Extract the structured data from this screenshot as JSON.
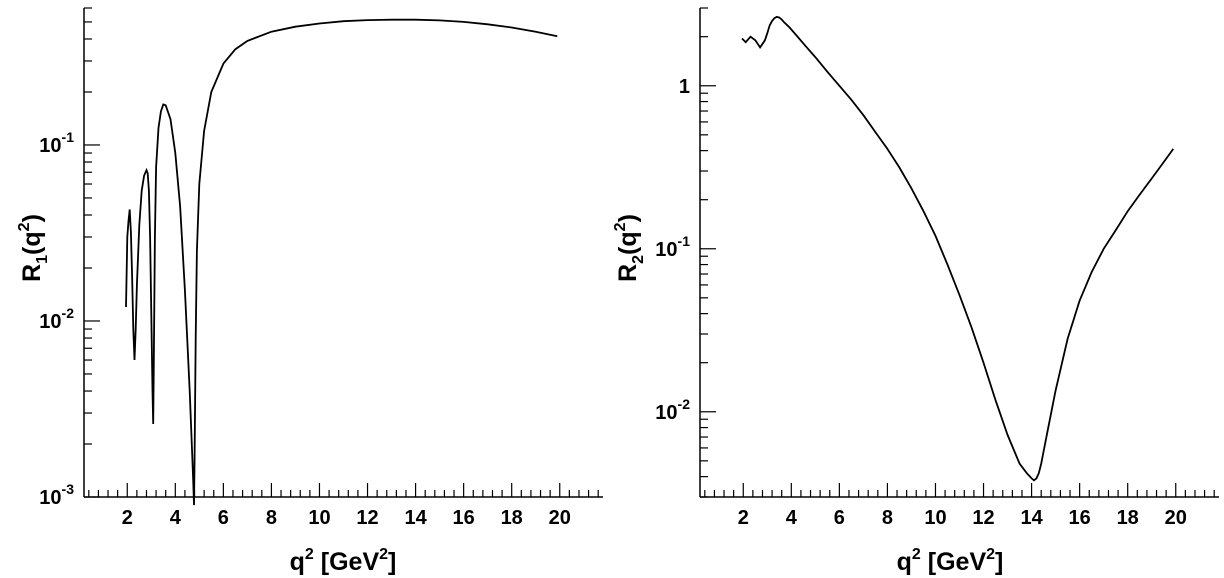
{
  "chart_data": [
    {
      "type": "line",
      "title": "",
      "ylabel_main": "R",
      "ylabel_sub": "1",
      "ylabel_tail": "(q",
      "ylabel_sup": "2",
      "ylabel_close": ")",
      "xlabel_main": "q",
      "xlabel_sup": "2",
      "xlabel_mid": " [GeV",
      "xlabel_sup2": "2",
      "xlabel_close": "]",
      "xlim": [
        0.2,
        21.8
      ],
      "ylim": [
        0.001,
        0.6
      ],
      "yscale": "log",
      "grid": false,
      "x_ticks": [
        "2",
        "4",
        "6",
        "8",
        "10",
        "12",
        "14",
        "16",
        "18",
        "20"
      ],
      "y_ticks": [
        {
          "base": "10",
          "exp": "-3",
          "value": 0.001
        },
        {
          "base": "10",
          "exp": "-2",
          "value": 0.01
        },
        {
          "base": "10",
          "exp": "-1",
          "value": 0.1
        }
      ],
      "series": [
        {
          "x": [
            1.95,
            2.0,
            2.05,
            2.1,
            2.15,
            2.2,
            2.25,
            2.3,
            2.35,
            2.4,
            2.5,
            2.6,
            2.7,
            2.8,
            2.85,
            2.9,
            2.95,
            3.0,
            3.05,
            3.08,
            3.1,
            3.15,
            3.2,
            3.3,
            3.4,
            3.5,
            3.6,
            3.8,
            4.0,
            4.2,
            4.4,
            4.6,
            4.7,
            4.75,
            4.78,
            4.8,
            4.85,
            4.9,
            5.0,
            5.2,
            5.5,
            6.0,
            6.5,
            7.0,
            8.0,
            9.0,
            10.0,
            11.0,
            12.0,
            13.0,
            14.0,
            15.0,
            16.0,
            17.0,
            18.0,
            19.0,
            19.9
          ],
          "y": [
            0.012,
            0.03,
            0.037,
            0.043,
            0.032,
            0.018,
            0.009,
            0.006,
            0.009,
            0.016,
            0.035,
            0.055,
            0.067,
            0.072,
            0.069,
            0.055,
            0.03,
            0.011,
            0.004,
            0.0026,
            0.005,
            0.03,
            0.075,
            0.125,
            0.155,
            0.17,
            0.168,
            0.14,
            0.09,
            0.045,
            0.015,
            0.004,
            0.0018,
            0.0012,
            0.0009,
            0.0015,
            0.008,
            0.025,
            0.06,
            0.12,
            0.2,
            0.29,
            0.35,
            0.39,
            0.44,
            0.47,
            0.49,
            0.505,
            0.512,
            0.515,
            0.515,
            0.51,
            0.5,
            0.485,
            0.465,
            0.44,
            0.415
          ]
        }
      ]
    },
    {
      "type": "line",
      "title": "",
      "ylabel_main": "R",
      "ylabel_sub": "2",
      "ylabel_tail": "(q",
      "ylabel_sup": "2",
      "ylabel_close": ")",
      "xlabel_main": "q",
      "xlabel_sup": "2",
      "xlabel_mid": " [GeV",
      "xlabel_sup2": "2",
      "xlabel_close": "]",
      "xlim": [
        0.2,
        21.8
      ],
      "ylim": [
        0.003,
        3.0
      ],
      "yscale": "log",
      "grid": false,
      "x_ticks": [
        "2",
        "4",
        "6",
        "8",
        "10",
        "12",
        "14",
        "16",
        "18",
        "20"
      ],
      "y_ticks": [
        {
          "base": "10",
          "exp": "-2",
          "value": 0.01
        },
        {
          "base": "10",
          "exp": "-1",
          "value": 0.1
        },
        {
          "base": "1",
          "exp": "",
          "value": 1
        }
      ],
      "series": [
        {
          "x": [
            1.95,
            2.1,
            2.3,
            2.5,
            2.7,
            2.9,
            3.0,
            3.1,
            3.2,
            3.3,
            3.4,
            3.5,
            3.6,
            3.7,
            3.9,
            4.2,
            4.6,
            5.0,
            5.5,
            6.0,
            6.5,
            7.0,
            7.5,
            8.0,
            8.5,
            9.0,
            9.5,
            10.0,
            10.5,
            11.0,
            11.5,
            12.0,
            12.5,
            13.0,
            13.5,
            13.8,
            14.0,
            14.1,
            14.2,
            14.3,
            14.4,
            14.6,
            15.0,
            15.5,
            16.0,
            16.5,
            17.0,
            17.5,
            18.0,
            18.5,
            19.0,
            19.5,
            19.9
          ],
          "y": [
            1.95,
            1.85,
            2.0,
            1.9,
            1.72,
            1.9,
            2.1,
            2.35,
            2.5,
            2.6,
            2.65,
            2.62,
            2.55,
            2.45,
            2.3,
            2.05,
            1.75,
            1.5,
            1.22,
            1.0,
            0.82,
            0.66,
            0.52,
            0.41,
            0.315,
            0.235,
            0.17,
            0.12,
            0.08,
            0.052,
            0.033,
            0.02,
            0.0118,
            0.0072,
            0.0048,
            0.0042,
            0.0039,
            0.0038,
            0.0039,
            0.0042,
            0.0048,
            0.0068,
            0.0135,
            0.028,
            0.048,
            0.072,
            0.1,
            0.13,
            0.17,
            0.215,
            0.27,
            0.34,
            0.41
          ]
        }
      ]
    }
  ]
}
